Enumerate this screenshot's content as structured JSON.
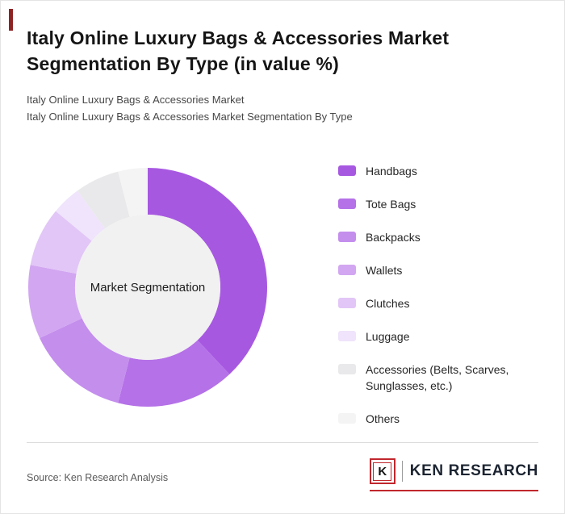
{
  "accent_color": "#8e2323",
  "brand_color": "#c0272d",
  "header": {
    "title": "Italy Online Luxury Bags & Accessories Market Segmentation By Type (in value %)",
    "subtitle1": "Italy Online Luxury Bags & Accessories Market",
    "subtitle2": "Italy Online Luxury Bags & Accessories Market Segmentation By Type"
  },
  "chart_data": {
    "type": "pie",
    "subtype": "donut",
    "title": "Italy Online Luxury Bags & Accessories Market Segmentation By Type (in value %)",
    "center_label": "Market Segmentation",
    "unit": "value %",
    "legend_position": "right",
    "start_angle_deg": -90,
    "direction": "clockwise",
    "categories": [
      "Handbags",
      "Tote Bags",
      "Backpacks",
      "Wallets",
      "Clutches",
      "Luggage",
      "Accessories (Belts, Scarves, Sunglasses, etc.)",
      "Others"
    ],
    "values": [
      38,
      16,
      14,
      10,
      8,
      4,
      6,
      4
    ],
    "colors": [
      "#a758e1",
      "#b571e7",
      "#c48eed",
      "#d2a6f1",
      "#e2c6f7",
      "#efe4fb",
      "#e9e9eb",
      "#f4f4f4"
    ],
    "center_color": "#f1f1f1"
  },
  "footer": {
    "source": "Source: Ken Research Analysis",
    "logo": {
      "k": "K",
      "text": "KEN RESEARCH"
    }
  }
}
